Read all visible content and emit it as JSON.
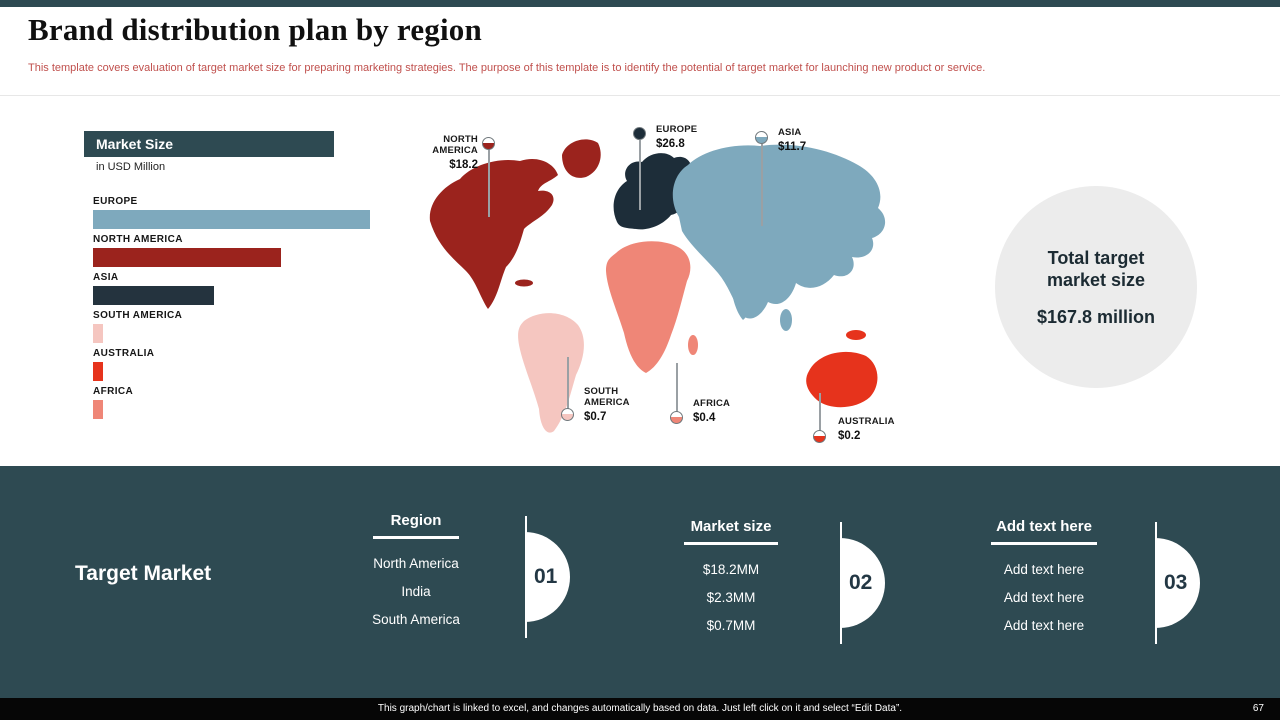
{
  "page": {
    "title": "Brand distribution plan by region",
    "subtitle": "This template covers evaluation of target market size for preparing marketing strategies. The purpose of this template is to identify the potential of target market for launching new product or service.",
    "footnote": "This graph/chart is linked to excel, and changes automatically based on data. Just left click on it and select “Edit Data”.",
    "page_number": "67"
  },
  "chart_data": {
    "type": "bar",
    "orientation": "horizontal",
    "title": "Market Size",
    "unit_label": "in USD Million",
    "categories": [
      "EUROPE",
      "NORTH AMERICA",
      "ASIA",
      "SOUTH AMERICA",
      "AUSTRALIA",
      "AFRICA"
    ],
    "values": [
      26.8,
      18.2,
      11.7,
      0.7,
      0.2,
      0.4
    ],
    "colors": [
      "#7ea9bd",
      "#9b231d",
      "#24333e",
      "#f5c6c0",
      "#e6331c",
      "#ef8677"
    ],
    "xlim": [
      0,
      30
    ],
    "grid": false,
    "legend": "none"
  },
  "map": {
    "regions": [
      {
        "name": "NORTH AMERICA",
        "value": "$18.2",
        "color": "#9b231d"
      },
      {
        "name": "EUROPE",
        "value": "$26.8",
        "color": "#1d2d39"
      },
      {
        "name": "ASIA",
        "value": "$11.7",
        "color": "#7ea9bd"
      },
      {
        "name": "SOUTH AMERICA",
        "value": "$0.7",
        "color": "#f5c6c0"
      },
      {
        "name": "AFRICA",
        "value": "$0.4",
        "color": "#ef8677"
      },
      {
        "name": "AUSTRALIA",
        "value": "$0.2",
        "color": "#e6331c"
      }
    ]
  },
  "total": {
    "label": "Total target market size",
    "value": "$167.8 million"
  },
  "target_market": {
    "title": "Target Market",
    "columns": [
      {
        "header": "Region",
        "badge": "01",
        "rows": [
          "North America",
          "India",
          "South America"
        ]
      },
      {
        "header": "Market size",
        "badge": "02",
        "rows": [
          "$18.2MM",
          "$2.3MM",
          "$0.7MM"
        ]
      },
      {
        "header": "Add text here",
        "badge": "03",
        "rows": [
          "Add text here",
          "Add text here",
          "Add text here"
        ]
      }
    ]
  },
  "colors": {
    "accent_teal": "#2e4a52",
    "subtitle_red": "#c0504d",
    "circle_bg": "#ececec",
    "footer_bg": "#060606"
  }
}
